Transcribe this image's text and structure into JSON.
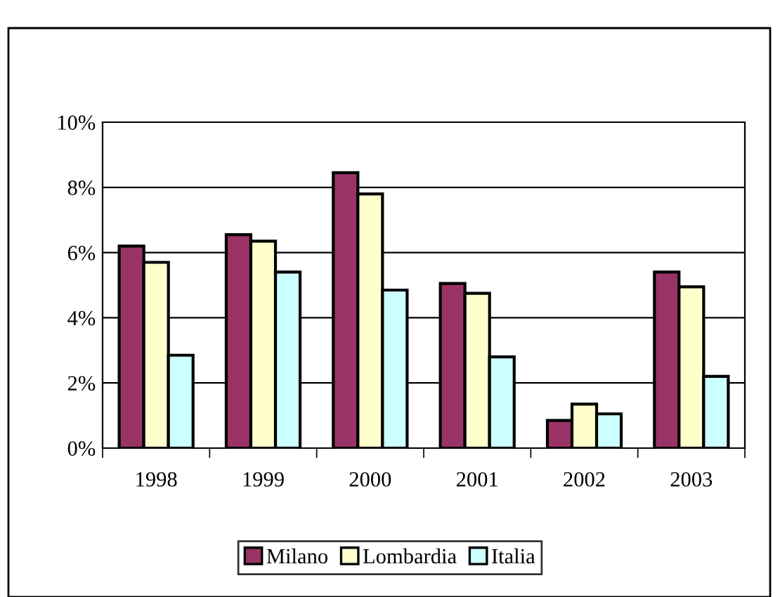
{
  "chart_data": {
    "type": "bar",
    "categories": [
      "1998",
      "1999",
      "2000",
      "2001",
      "2002",
      "2003"
    ],
    "series": [
      {
        "name": "Milano",
        "color": "#993366",
        "values": [
          6.2,
          6.55,
          8.45,
          5.05,
          0.85,
          5.4
        ]
      },
      {
        "name": "Lombardia",
        "color": "#ffffcc",
        "values": [
          5.7,
          6.35,
          7.8,
          4.75,
          1.35,
          4.95
        ]
      },
      {
        "name": "Italia",
        "color": "#ccffff",
        "values": [
          2.85,
          5.4,
          4.85,
          2.8,
          1.05,
          2.2
        ]
      }
    ],
    "ylim": [
      0,
      10
    ],
    "yticks": [
      {
        "value": 0,
        "label": "0%"
      },
      {
        "value": 2,
        "label": "2%"
      },
      {
        "value": 4,
        "label": "4%"
      },
      {
        "value": 6,
        "label": "6%"
      },
      {
        "value": 8,
        "label": "8%"
      },
      {
        "value": 10,
        "label": "10%"
      }
    ],
    "grid": "y",
    "legend": "bottom"
  }
}
